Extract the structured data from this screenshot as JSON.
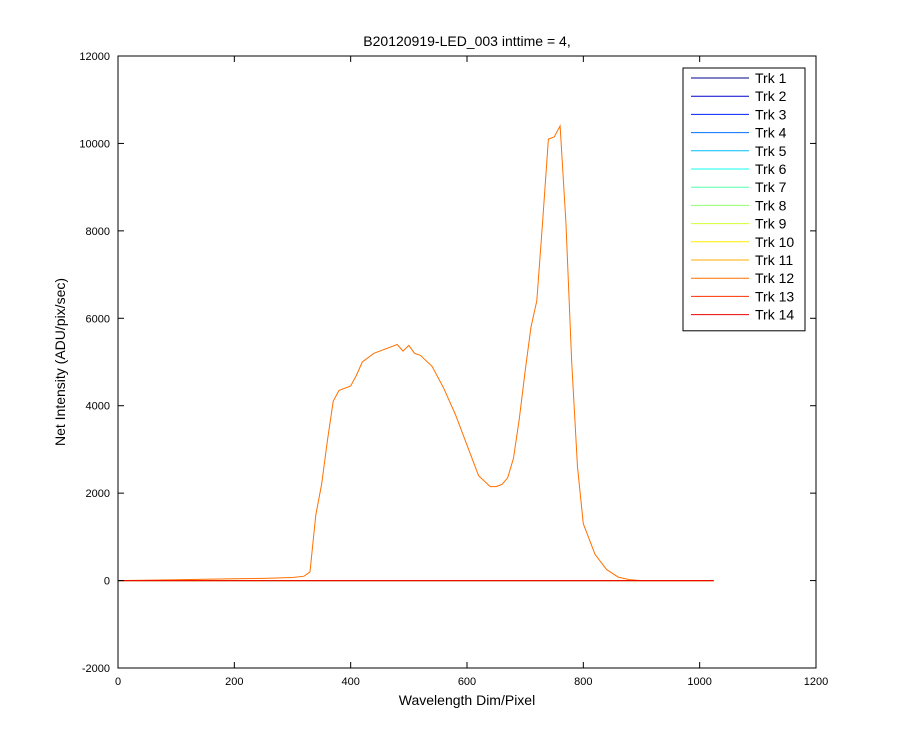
{
  "chart_data": {
    "type": "line",
    "title": "B20120919-LED_003 inttime = 4,",
    "xlabel": "Wavelength Dim/Pixel",
    "ylabel": "Net Intensity (ADU/pix/sec)",
    "xlim": [
      0,
      1200
    ],
    "ylim": [
      -2000,
      12000
    ],
    "xticks": [
      0,
      200,
      400,
      600,
      800,
      1000,
      1200
    ],
    "yticks": [
      -2000,
      0,
      2000,
      4000,
      6000,
      8000,
      10000,
      12000
    ],
    "grid": false,
    "legend_position": "top-right",
    "series": [
      {
        "name": "Trk 1",
        "color": "#00008f",
        "x": [
          0,
          1024
        ],
        "y": [
          0,
          0
        ]
      },
      {
        "name": "Trk 2",
        "color": "#0000cf",
        "x": [
          0,
          1024
        ],
        "y": [
          0,
          0
        ]
      },
      {
        "name": "Trk 3",
        "color": "#0020ff",
        "x": [
          0,
          1024
        ],
        "y": [
          0,
          0
        ]
      },
      {
        "name": "Trk 4",
        "color": "#0070ff",
        "x": [
          0,
          1024
        ],
        "y": [
          0,
          0
        ]
      },
      {
        "name": "Trk 5",
        "color": "#00bfff",
        "x": [
          0,
          1024
        ],
        "y": [
          0,
          0
        ]
      },
      {
        "name": "Trk 6",
        "color": "#10ffef",
        "x": [
          0,
          1024
        ],
        "y": [
          0,
          0
        ]
      },
      {
        "name": "Trk 7",
        "color": "#50ffaf",
        "x": [
          0,
          1024
        ],
        "y": [
          0,
          0
        ]
      },
      {
        "name": "Trk 8",
        "color": "#8fff70",
        "x": [
          0,
          1024
        ],
        "y": [
          0,
          0
        ]
      },
      {
        "name": "Trk 9",
        "color": "#cfff30",
        "x": [
          0,
          1024
        ],
        "y": [
          0,
          0
        ]
      },
      {
        "name": "Trk 10",
        "color": "#ffef00",
        "x": [
          0,
          1024
        ],
        "y": [
          0,
          0
        ]
      },
      {
        "name": "Trk 11",
        "color": "#ffaf00",
        "x": [
          0,
          1024
        ],
        "y": [
          0,
          0
        ]
      },
      {
        "name": "Trk 12",
        "color": "#ff7000",
        "x": [
          0,
          100,
          150,
          200,
          250,
          300,
          320,
          330,
          340,
          350,
          360,
          370,
          380,
          400,
          410,
          420,
          440,
          460,
          470,
          480,
          490,
          500,
          510,
          520,
          540,
          560,
          580,
          600,
          620,
          640,
          650,
          660,
          670,
          680,
          690,
          700,
          710,
          720,
          730,
          740,
          750,
          760,
          770,
          780,
          790,
          800,
          820,
          840,
          860,
          880,
          900,
          1024
        ],
        "y": [
          0,
          20,
          30,
          40,
          50,
          70,
          100,
          200,
          1500,
          2200,
          3200,
          4100,
          4350,
          4450,
          4700,
          5000,
          5200,
          5300,
          5350,
          5400,
          5250,
          5380,
          5200,
          5150,
          4900,
          4400,
          3800,
          3100,
          2400,
          2150,
          2150,
          2200,
          2350,
          2800,
          3700,
          4800,
          5800,
          6400,
          8200,
          10100,
          10150,
          10400,
          8200,
          5000,
          2600,
          1300,
          600,
          250,
          80,
          20,
          0,
          0
        ]
      },
      {
        "name": "Trk 13",
        "color": "#ff3000",
        "x": [
          0,
          1024
        ],
        "y": [
          0,
          0
        ]
      },
      {
        "name": "Trk 14",
        "color": "#ef0000",
        "x": [
          0,
          1024
        ],
        "y": [
          0,
          0
        ]
      }
    ]
  }
}
